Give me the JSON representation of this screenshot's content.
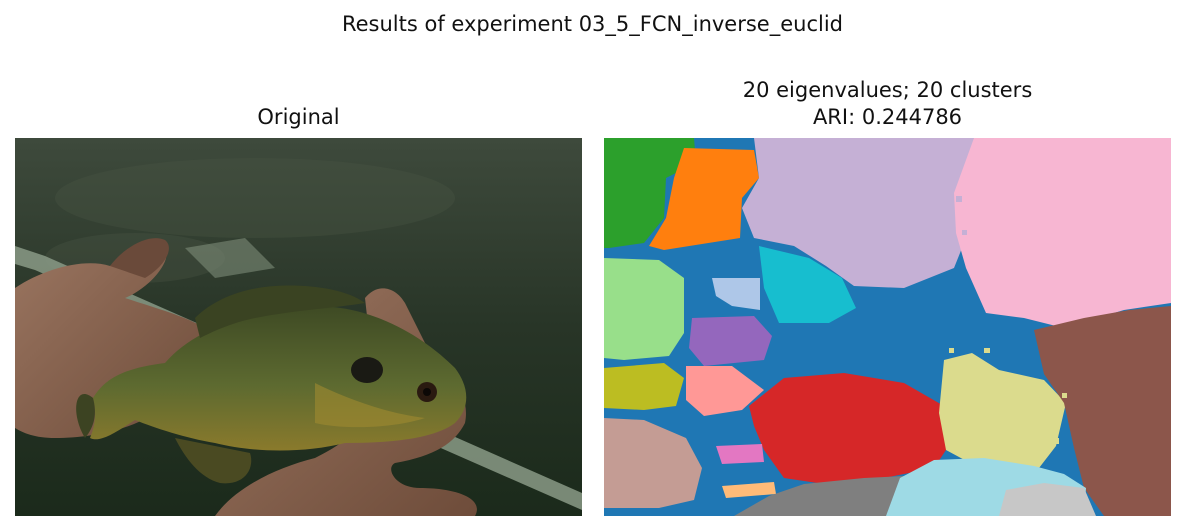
{
  "figure": {
    "suptitle": "Results of experiment 03_5_FCN_inverse_euclid"
  },
  "left_panel": {
    "title": "Original",
    "image_subject": "bluegill sunfish held in two hands"
  },
  "right_panel": {
    "title_line1": "20 eigenvalues; 20 clusters",
    "title_line2": "ARI: 0.244786",
    "image_subject": "segmentation map with 20 colored clusters"
  },
  "palette": {
    "background_cluster": "#1f77b4",
    "green": "#2ca02c",
    "orange": "#ff7f0e",
    "lavender": "#c5b0d5",
    "pink": "#f7b6d2",
    "cyan": "#17becf",
    "light_green": "#98df8a",
    "light_blue": "#aec7e8",
    "purple": "#9467bd",
    "olive": "#bcbd22",
    "salmon": "#ff9896",
    "red": "#d62728",
    "khaki": "#dbdb8d",
    "brown": "#8c564b",
    "tan": "#c49c94",
    "magenta": "#e377c2",
    "peach": "#ffbb78",
    "gray": "#7f7f7f",
    "light_cyan": "#9edae5",
    "light_gray": "#c7c7c7"
  }
}
